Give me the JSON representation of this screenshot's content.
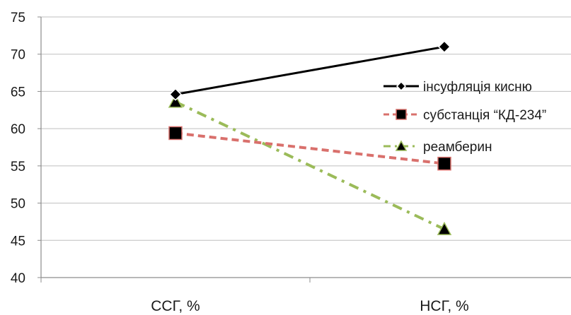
{
  "chart_data": {
    "type": "line",
    "categories": [
      "ССГ, %",
      "НСГ, %"
    ],
    "ylim": [
      40,
      75
    ],
    "yticks": [
      40,
      45,
      50,
      55,
      60,
      65,
      70,
      75
    ],
    "grid": true,
    "legend_position": "right",
    "series": [
      {
        "name": "інсуфляція кисню",
        "values": [
          64.6,
          71.0
        ],
        "color": "#000000",
        "marker": "diamond",
        "dash": "solid"
      },
      {
        "name": "субстанція “КД-234”",
        "values": [
          59.4,
          55.3
        ],
        "color": "#d9706c",
        "marker_fill": "#000000",
        "marker": "square",
        "dash": "dashed"
      },
      {
        "name": "реамберин",
        "values": [
          63.6,
          46.5
        ],
        "color": "#9bbb59",
        "marker_fill": "#000000",
        "marker": "triangle",
        "dash": "dash-dot"
      }
    ]
  }
}
